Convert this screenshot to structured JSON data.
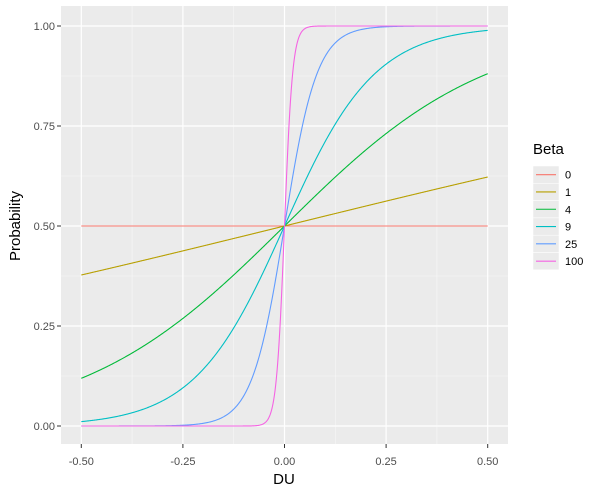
{
  "chart_data": {
    "type": "line",
    "title": "",
    "xlabel": "DU",
    "ylabel": "Probability",
    "xlim": [
      -0.5,
      0.5
    ],
    "ylim": [
      0,
      1
    ],
    "x_ticks": [
      -0.5,
      -0.25,
      0,
      0.25,
      0.5
    ],
    "x_tick_labels": [
      "-0.50",
      "-0.25",
      "0.00",
      "0.25",
      "0.50"
    ],
    "y_ticks": [
      0,
      0.25,
      0.5,
      0.75,
      1
    ],
    "y_tick_labels": [
      "0.00",
      "0.25",
      "0.50",
      "0.75",
      "1.00"
    ],
    "grid": true,
    "legend": {
      "title": "Beta",
      "position": "right"
    },
    "background": "#ebebeb",
    "x": [
      -0.5,
      -0.4,
      -0.3,
      -0.2,
      -0.1,
      -0.05,
      0,
      0.05,
      0.1,
      0.2,
      0.3,
      0.4,
      0.5
    ],
    "series": [
      {
        "name": "0",
        "color": "#F8766D",
        "values": [
          0.5,
          0.5,
          0.5,
          0.5,
          0.5,
          0.5,
          0.5,
          0.5,
          0.5,
          0.5,
          0.5,
          0.5,
          0.5
        ]
      },
      {
        "name": "1",
        "color": "#B79F00",
        "values": [
          0.378,
          0.401,
          0.426,
          0.45,
          0.475,
          0.488,
          0.5,
          0.512,
          0.525,
          0.55,
          0.574,
          0.599,
          0.622
        ]
      },
      {
        "name": "4",
        "color": "#00BA38",
        "values": [
          0.119,
          0.168,
          0.231,
          0.31,
          0.401,
          0.45,
          0.5,
          0.55,
          0.599,
          0.69,
          0.769,
          0.832,
          0.881
        ]
      },
      {
        "name": "9",
        "color": "#00BFC4",
        "values": [
          0.011,
          0.027,
          0.063,
          0.142,
          0.289,
          0.389,
          0.5,
          0.611,
          0.711,
          0.858,
          0.937,
          0.973,
          0.989
        ]
      },
      {
        "name": "25",
        "color": "#619CFF",
        "values": [
          0.0,
          0.0,
          0.001,
          0.007,
          0.076,
          0.223,
          0.5,
          0.777,
          0.924,
          0.993,
          0.999,
          1.0,
          1.0
        ]
      },
      {
        "name": "100",
        "color": "#F564E3",
        "values": [
          0.0,
          0.0,
          0.0,
          0.0,
          0.0,
          0.007,
          0.5,
          0.993,
          1.0,
          1.0,
          1.0,
          1.0,
          1.0
        ]
      }
    ]
  }
}
